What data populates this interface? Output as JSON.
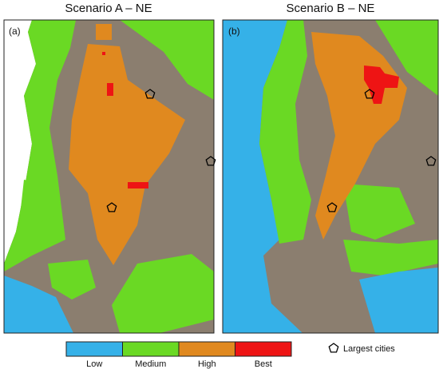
{
  "panels": [
    {
      "title": "Scenario A – NE",
      "label": "(a)"
    },
    {
      "title": "Scenario B – NE",
      "label": "(b)"
    }
  ],
  "legend": {
    "items": [
      {
        "name": "Low",
        "color": "#35b1e8"
      },
      {
        "name": "Medium",
        "color": "#6ad924"
      },
      {
        "name": "High",
        "color": "#e0891f"
      },
      {
        "name": "Best",
        "color": "#ee1414"
      }
    ],
    "cities": "Largest cities"
  }
}
